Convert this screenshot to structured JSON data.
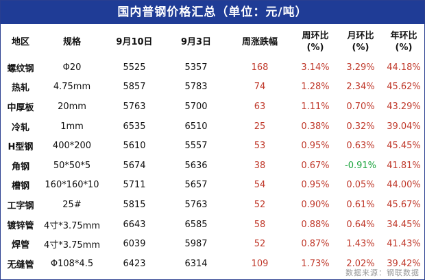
{
  "title": "国内普钢价格汇总（单位：元/吨）",
  "headers": [
    "地区",
    "规格",
    "9月10日",
    "9月3日",
    "周涨跌幅",
    "周环比\n(%)",
    "月环比\n(%)",
    "年环比\n(%)"
  ],
  "rows": [
    {
      "product": "螺纹钢",
      "spec": "Φ20",
      "sep10": "5525",
      "sep3": "5357",
      "weekly_change": "168",
      "wow": "3.14%",
      "mom": "3.29%",
      "yoy": "44.18%"
    },
    {
      "product": "热轧",
      "spec": "4.75mm",
      "sep10": "5857",
      "sep3": "5783",
      "weekly_change": "74",
      "wow": "1.28%",
      "mom": "2.34%",
      "yoy": "45.62%"
    },
    {
      "product": "中厚板",
      "spec": "20mm",
      "sep10": "5763",
      "sep3": "5700",
      "weekly_change": "63",
      "wow": "1.11%",
      "mom": "0.70%",
      "yoy": "43.29%"
    },
    {
      "product": "冷轧",
      "spec": "1mm",
      "sep10": "6535",
      "sep3": "6510",
      "weekly_change": "25",
      "wow": "0.38%",
      "mom": "0.32%",
      "yoy": "39.04%"
    },
    {
      "product": "H型钢",
      "spec": "400*200",
      "sep10": "5610",
      "sep3": "5557",
      "weekly_change": "53",
      "wow": "0.95%",
      "mom": "0.63%",
      "yoy": "45.45%"
    },
    {
      "product": "角钢",
      "spec": "50*50*5",
      "sep10": "5674",
      "sep3": "5636",
      "weekly_change": "38",
      "wow": "0.67%",
      "mom": "-0.91%",
      "yoy": "41.81%"
    },
    {
      "product": "槽钢",
      "spec": "160*160*10",
      "sep10": "5711",
      "sep3": "5657",
      "weekly_change": "54",
      "wow": "0.95%",
      "mom": "0.05%",
      "yoy": "44.00%"
    },
    {
      "product": "工字钢",
      "spec": "25#",
      "sep10": "5815",
      "sep3": "5763",
      "weekly_change": "52",
      "wow": "0.90%",
      "mom": "0.61%",
      "yoy": "45.67%"
    },
    {
      "product": "镀锌管",
      "spec": "4寸*3.75mm",
      "sep10": "6643",
      "sep3": "6585",
      "weekly_change": "58",
      "wow": "0.88%",
      "mom": "0.64%",
      "yoy": "34.45%"
    },
    {
      "product": "焊管",
      "spec": "4寸*3.75mm",
      "sep10": "6039",
      "sep3": "5987",
      "weekly_change": "52",
      "wow": "0.87%",
      "mom": "1.43%",
      "yoy": "41.43%"
    },
    {
      "product": "无缝管",
      "spec": "Φ108*4.5",
      "sep10": "6423",
      "sep3": "6314",
      "weekly_change": "109",
      "wow": "1.73%",
      "mom": "2.02%",
      "yoy": "39.42%"
    }
  ],
  "source": "数据来源：钢联数据",
  "colors": {
    "header_bg": "#1f3c96",
    "positive": "#c0392b",
    "negative": "#1aa33c"
  }
}
